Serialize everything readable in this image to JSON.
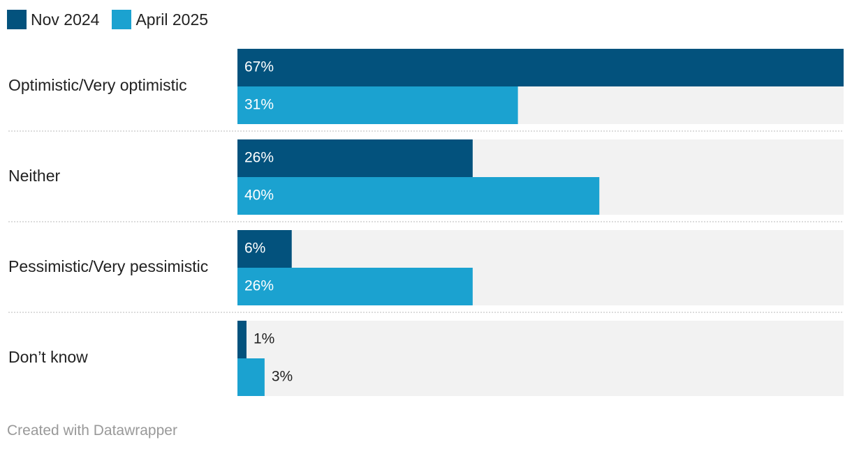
{
  "legend": [
    {
      "name": "Nov 2024",
      "color": "#03527d"
    },
    {
      "name": "April 2025",
      "color": "#1ba2d0"
    }
  ],
  "chart_data": {
    "type": "bar",
    "orientation": "horizontal",
    "grouped": true,
    "categories": [
      "Optimistic/Very optimistic",
      "Neither",
      "Pessimistic/Very pessimistic",
      "Don’t know"
    ],
    "series": [
      {
        "name": "Nov 2024",
        "color": "#03527d",
        "values": [
          67,
          26,
          6,
          1
        ]
      },
      {
        "name": "April 2025",
        "color": "#1ba2d0",
        "values": [
          31,
          40,
          26,
          3
        ]
      }
    ],
    "value_suffix": "%",
    "xlim": [
      0,
      67
    ],
    "background_track_color": "#f2f2f2",
    "label_color_inside": "#ffffff",
    "label_color_outside": "#222222",
    "title": "",
    "xlabel": "",
    "ylabel": "",
    "legend_position": "top-left",
    "grid": false
  },
  "footer": {
    "credit": "Created with Datawrapper"
  }
}
